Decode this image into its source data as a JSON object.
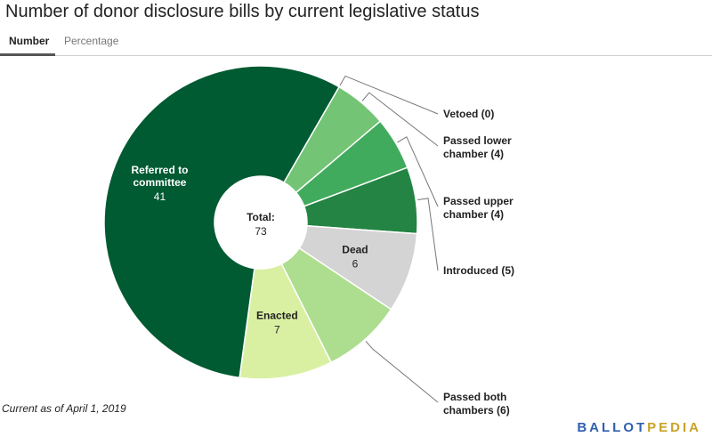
{
  "title": "Number of donor disclosure bills by current legislative status",
  "tabs": [
    {
      "label": "Number",
      "active": true
    },
    {
      "label": "Percentage",
      "active": false
    }
  ],
  "footnote": "Current as of April 1, 2019",
  "logo": {
    "text": "BALLOTPEDIA",
    "lead": "BALLOT",
    "accent": "PEDIA"
  },
  "chart_data": {
    "type": "pie",
    "subtype": "donut",
    "total_label": "Total:",
    "total": 73,
    "slices": [
      {
        "label": "Vetoed",
        "value": 0,
        "color": "#00441b",
        "caption": "Vetoed (0)"
      },
      {
        "label": "Passed lower chamber",
        "value": 4,
        "color": "#74c476",
        "caption": "Passed lower chamber (4)"
      },
      {
        "label": "Passed upper chamber",
        "value": 4,
        "color": "#41ab5d",
        "caption": "Passed upper chamber (4)"
      },
      {
        "label": "Introduced",
        "value": 5,
        "color": "#238443",
        "caption": "Introduced (5)"
      },
      {
        "label": "Dead",
        "value": 6,
        "color": "#d4d4d4",
        "caption": "Dead"
      },
      {
        "label": "Passed both chambers",
        "value": 6,
        "color": "#addd8e",
        "caption": "Passed both chambers (6)"
      },
      {
        "label": "Enacted",
        "value": 7,
        "color": "#d9f0a3",
        "caption": "Enacted"
      },
      {
        "label": "Referred to committee",
        "value": 41,
        "color": "#005a32",
        "caption": "Referred to committee"
      }
    ],
    "colors": {
      "outside_label": "#222222",
      "leader_line": "#777777",
      "inside_dark_text": "#ffffff",
      "inside_light_text": "#222222"
    }
  }
}
